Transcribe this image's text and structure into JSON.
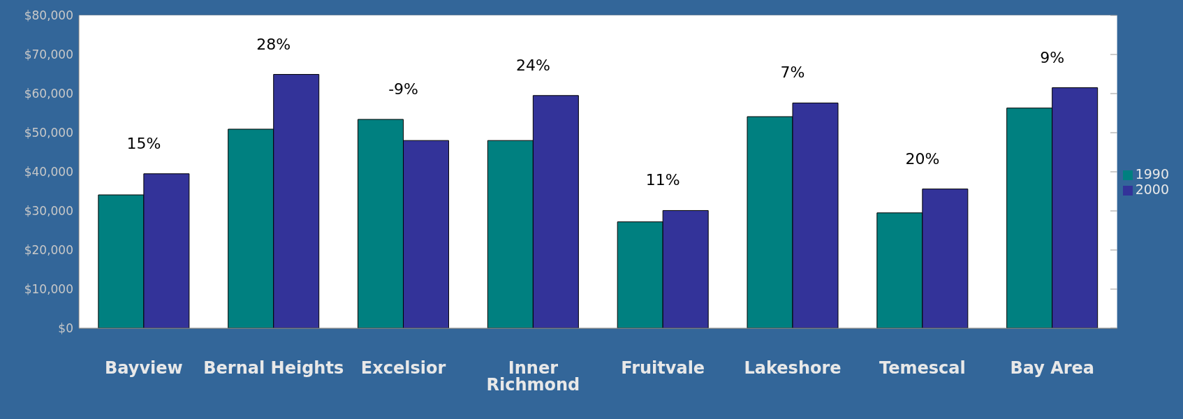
{
  "chart_data": {
    "type": "bar",
    "categories": [
      "Bayview",
      "Bernal Heights",
      "Excelsior",
      "Inner Richmond",
      "Fruitvale",
      "Lakeshore",
      "Temescal",
      "Bay Area"
    ],
    "series": [
      {
        "name": "1990",
        "color": "#008080",
        "values": [
          34100,
          50900,
          53400,
          48000,
          27200,
          54100,
          29500,
          56300
        ]
      },
      {
        "name": "2000",
        "color": "#333399",
        "values": [
          39500,
          64900,
          48000,
          59500,
          30100,
          57600,
          35600,
          61500
        ]
      }
    ],
    "annotations": [
      "15%",
      "28%",
      "-9%",
      "24%",
      "11%",
      "7%",
      "20%",
      "9%"
    ],
    "ylim": [
      0,
      80000
    ],
    "yticks": [
      {
        "value": 0,
        "label": "$0"
      },
      {
        "value": 10000,
        "label": "$10,000"
      },
      {
        "value": 20000,
        "label": "$20,000"
      },
      {
        "value": 30000,
        "label": "$30,000"
      },
      {
        "value": 40000,
        "label": "$40,000"
      },
      {
        "value": 50000,
        "label": "$50,000"
      },
      {
        "value": 60000,
        "label": "$60,000"
      },
      {
        "value": 70000,
        "label": "$70,000"
      },
      {
        "value": 80000,
        "label": "$80,000"
      }
    ],
    "grid": "y",
    "legend": "right"
  }
}
